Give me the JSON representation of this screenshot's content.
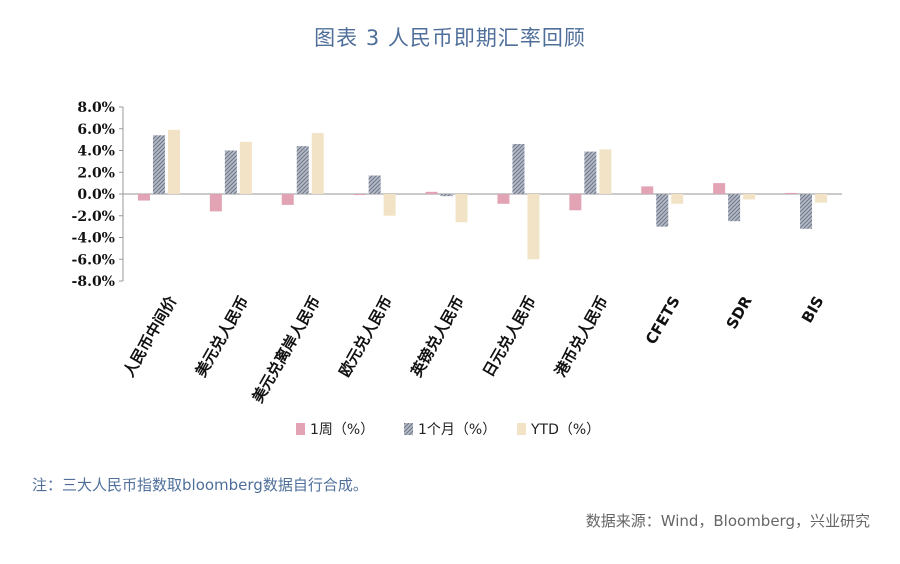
{
  "title": "图表 3 人民币即期汇率回顾",
  "note": "注：三大人民币指数取bloomberg数据自行合成。",
  "source": "数据来源：Wind，Bloomberg，兴业研究",
  "chart_data": {
    "type": "bar",
    "categories": [
      "人民币中间价",
      "美元兑人民币",
      "美元兑离岸人民币",
      "欧元兑人民币",
      "英镑兑人民币",
      "日元兑人民币",
      "港币兑人民币",
      "CFETS",
      "SDR",
      "BIS"
    ],
    "series": [
      {
        "name": "1周（%）",
        "color": "#e2a3b4",
        "values": [
          -0.6,
          -1.6,
          -1.0,
          -0.1,
          0.2,
          -0.9,
          -1.5,
          0.7,
          1.0,
          0.1
        ]
      },
      {
        "name": "1个月（%）",
        "color": "#8d96a8",
        "values": [
          5.4,
          4.0,
          4.4,
          1.7,
          -0.2,
          4.6,
          3.9,
          -3.0,
          -2.5,
          -3.2
        ]
      },
      {
        "name": "YTD（%）",
        "color": "#f2e3c6",
        "values": [
          5.9,
          4.8,
          5.6,
          -2.0,
          -2.6,
          -6.0,
          4.1,
          -0.9,
          -0.5,
          -0.8
        ]
      }
    ],
    "ylim": [
      -8.0,
      8.0
    ],
    "yticks": [
      "8.0%",
      "6.0%",
      "4.0%",
      "2.0%",
      "0.0%",
      "-2.0%",
      "-4.0%",
      "-6.0%",
      "-8.0%"
    ],
    "ytick_values": [
      8,
      6,
      4,
      2,
      0,
      -2,
      -4,
      -6,
      -8
    ],
    "legend_position": "bottom"
  }
}
